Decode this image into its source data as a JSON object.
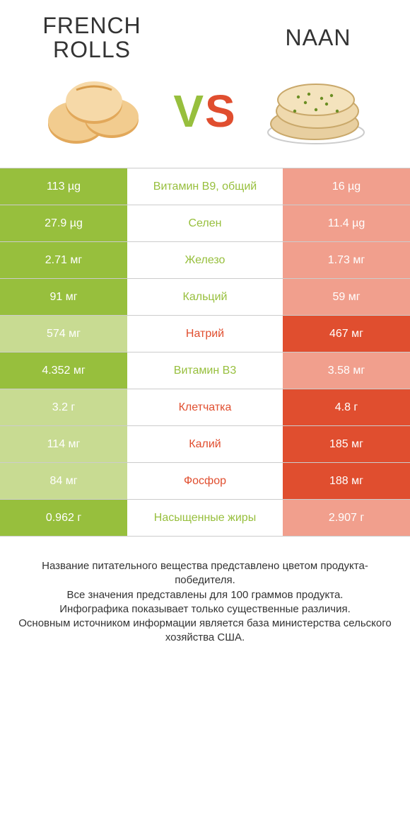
{
  "colors": {
    "left_winner": "#97bf3d",
    "left_loser": "#c8db92",
    "right_winner": "#e04e2f",
    "right_loser": "#f19f8d",
    "border": "#cccccc",
    "text": "#333333",
    "bg": "#ffffff"
  },
  "header": {
    "left_title": "FRENCH\nROLLS",
    "right_title": "NAAN",
    "vs_v": "V",
    "vs_s": "S"
  },
  "title_fontsize_pt": 24,
  "vs_fontsize_pt": 48,
  "cell_fontsize_pt": 12,
  "footnote_fontsize_pt": 11,
  "rows": [
    {
      "left": "113 µg",
      "label": "Витамин B9, общий",
      "right": "16 µg",
      "winner": "left"
    },
    {
      "left": "27.9 µg",
      "label": "Селен",
      "right": "11.4 µg",
      "winner": "left"
    },
    {
      "left": "2.71 мг",
      "label": "Железо",
      "right": "1.73 мг",
      "winner": "left"
    },
    {
      "left": "91 мг",
      "label": "Кальций",
      "right": "59 мг",
      "winner": "left"
    },
    {
      "left": "574 мг",
      "label": "Натрий",
      "right": "467 мг",
      "winner": "right"
    },
    {
      "left": "4.352 мг",
      "label": "Витамин B3",
      "right": "3.58 мг",
      "winner": "left"
    },
    {
      "left": "3.2 г",
      "label": "Клетчатка",
      "right": "4.8 г",
      "winner": "right"
    },
    {
      "left": "114 мг",
      "label": "Калий",
      "right": "185 мг",
      "winner": "right"
    },
    {
      "left": "84 мг",
      "label": "Фосфор",
      "right": "188 мг",
      "winner": "right"
    },
    {
      "left": "0.962 г",
      "label": "Насыщенные жиры",
      "right": "2.907 г",
      "winner": "left"
    }
  ],
  "footnotes": [
    "Название питательного вещества представлено цветом продукта-победителя.",
    "Все значения представлены для 100 граммов продукта.",
    "Инфографика показывает только существенные различия.",
    "Основным источником информации является база министерства сельского хозяйства США."
  ]
}
